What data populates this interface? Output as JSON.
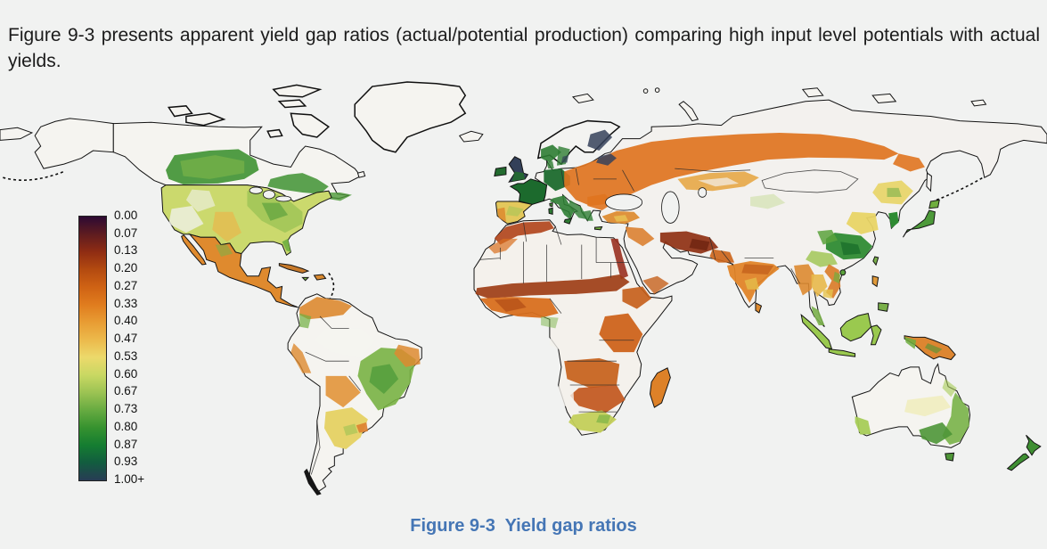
{
  "page": {
    "background": "#f1f2f1"
  },
  "intro": {
    "text": "Figure 9-3 presents apparent yield gap ratios (actual/potential production) comparing high input level potentials with actual yields."
  },
  "figure": {
    "caption": "Figure 9-3  Yield gap ratios",
    "caption_color": "#4576b5"
  },
  "legend": {
    "entries": [
      {
        "label": "0.00",
        "color": "#2d0a33"
      },
      {
        "label": "0.07",
        "color": "#5e1c20"
      },
      {
        "label": "0.13",
        "color": "#8f2c13"
      },
      {
        "label": "0.20",
        "color": "#b34a10"
      },
      {
        "label": "0.27",
        "color": "#cf6214"
      },
      {
        "label": "0.33",
        "color": "#e07c1e"
      },
      {
        "label": "0.40",
        "color": "#e89c33"
      },
      {
        "label": "0.47",
        "color": "#ecb94b"
      },
      {
        "label": "0.53",
        "color": "#ecd96b"
      },
      {
        "label": "0.60",
        "color": "#c9d863"
      },
      {
        "label": "0.67",
        "color": "#9cc353"
      },
      {
        "label": "0.73",
        "color": "#67ab41"
      },
      {
        "label": "0.80",
        "color": "#36922f"
      },
      {
        "label": "0.87",
        "color": "#157d31"
      },
      {
        "label": "0.93",
        "color": "#125c3f"
      },
      {
        "label": "1.00+",
        "color": "#283c55"
      }
    ]
  },
  "map": {
    "ocean_color": "#f1f2f1",
    "outline_color": "#141414",
    "region_colors": {
      "alaska": "#f5f4f0",
      "chukotka": "#f5f4f0",
      "canada": "#f5f4f0",
      "greenland": "#f5f4f0",
      "arctic-island": "#f5f4f0",
      "iceland": "#f5f4f0",
      "newfoundland": "#f5f4f0",
      "sakhalin": "#f3f1ee",
      "us": "#cbd96d",
      "us-west-white": "#f1f2f0",
      "us-basin-white": "#f1f2f0",
      "us-plains-amber": "#e7b84d",
      "us-east-green": "#9cc355",
      "us-east-dark": "#3f9232",
      "florida": "#6fae3f",
      "canada-prairie": "#3f9232",
      "canada-prairie-light": "#79b348",
      "canada-east": "#3f9232",
      "canada-maritimes": "#4d9a3a",
      "baja": "#df8a2e",
      "mexico": "#df8a2e",
      "mexico-green": "#79b348",
      "cuba": "#c87a2a",
      "hispaniola": "#d98a30",
      "jamaica": "#79b348",
      "south-america": "#f5f4f0",
      "venezuela": "#dd8a30",
      "colombia-green": "#6fae3f",
      "amazon-white": "#f5f4f0",
      "brazil-center": "#79b344",
      "brazil-dark": "#3f9232",
      "brazil-ne": "#dd8a30",
      "peru-coast": "#dd8a30",
      "bolivia": "#e2953a",
      "argentina": "#e6d36a",
      "uruguay": "#dd8030",
      "pampas-green": "#9cc353",
      "patagonia": "#161616",
      "africa": "#f4f1ec",
      "maghreb": "#b0421a",
      "maghreb-orange": "#d86f1f",
      "nile": "#993020",
      "sahel": "#9c3a12",
      "west-africa": "#d86f1f",
      "west-africa-dark": "#aa4512",
      "ethiopia": "#c55d18",
      "east-africa": "#cc5f16",
      "congo-white": "#f4f1ec",
      "congo-green": "#79b348",
      "angola-zambia": "#c55d16",
      "southern-africa": "#c1531a",
      "namibia-white": "#f4f1ec",
      "south-africa": "#c3cf5a",
      "sa-green": "#6fae3f",
      "madagascar": "#dd8128",
      "iberia": "#e3c85c",
      "portugal": "#dd8a2e",
      "spain-green": "#9cc353",
      "france": "#1c6a2d",
      "uk": "#334059",
      "england-green": "#226b2f",
      "ireland": "#226b2f",
      "scandinavia": "#f3f3f1",
      "norway-green": "#2e7d33",
      "sweden-green": "#2e7d33",
      "finland-navy": "#35415a",
      "sweden-navy": "#35415a",
      "denmark-green": "#2e7d33",
      "eurasia": "#f3f1ee",
      "germany-green": "#1c6a2d",
      "italy-green": "#2e7d33",
      "balkans-green": "#2e7d33",
      "greece-green": "#2e7d33",
      "east-europe-orange": "#e0741f",
      "russia-band": "#e0741f",
      "amur": "#e0741f",
      "baltic-navy": "#35415a",
      "kazakhstan": "#e5a33c",
      "kazakh-white": "#f3f1ee",
      "turkey": "#dd8a2e",
      "turkey-yellow": "#e8c455",
      "levant": "#d97a26",
      "iran": "#8f3113",
      "iran-dark": "#6e2310",
      "yemen": "#c86a28",
      "pakistan": "#cc6418",
      "india": "#e08428",
      "ganges": "#c05b18",
      "deccan-yellow": "#e6c44e",
      "xinjiang": "#c6dc96",
      "manchuria": "#e8d465",
      "manchuria-green": "#7ab04a",
      "north-china": "#e8d465",
      "se-china": "#2f8b33",
      "se-china-dark": "#1c6f2b",
      "sichuan": "#5aa23c",
      "yunnan": "#9cc44e",
      "korea": "#2f8b33",
      "myanmar": "#dd8a30",
      "thailand": "#e8b84a",
      "vietnam": "#d97a26",
      "vietnam-green": "#6fae3f",
      "cambodia": "#e6c44e",
      "malay": "#7ab04a",
      "japan": "#4d9a3a",
      "hokkaido": "#6fae3f",
      "taiwan": "#7ab04a",
      "hainan": "#5aa23c",
      "sri-lanka": "#dd8a30",
      "sumatra": "#9ac94f",
      "java": "#9ac94f",
      "borneo": "#9ac94f",
      "sulawesi": "#9ac94f",
      "philippines-luzon": "#e09a3a",
      "philippines-mindanao": "#7ab04a",
      "new-guinea": "#dd8631",
      "new-guinea-green": "#6fae3f",
      "new-guinea-highlands": "#4e9637",
      "australia": "#f5f4f0",
      "australia-sw": "#a7cc57",
      "australia-east": "#79b348",
      "australia-se": "#4e9637",
      "australia-inland": "#ece9a0",
      "queensland": "#a7cc57",
      "tasmania": "#4e9637",
      "nz": "#3f8f33",
      "sicily": "#2e7d33",
      "sardinia": "#2e7d33",
      "corsica": "#4d9a3a",
      "crete": "#6fae3f",
      "sea": "#f1f2f1"
    }
  }
}
